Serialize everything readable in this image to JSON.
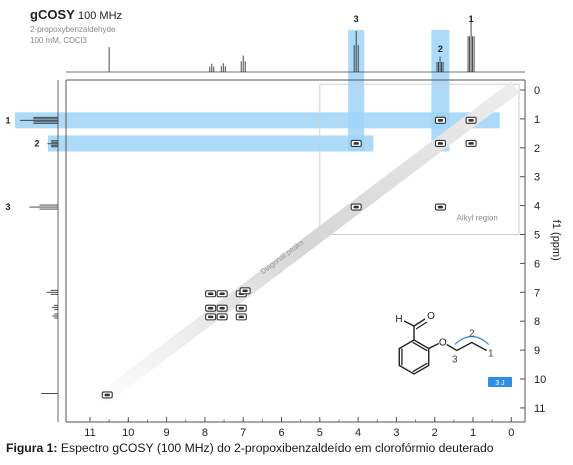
{
  "chart_data": {
    "type": "scatter",
    "title": "gCOSY",
    "title_suffix": "100 MHz",
    "subtitle_lines": [
      "2-propoxybenzaldehyde",
      "100 mM, CDCl3"
    ],
    "axis_label_f1": "f1 (ppm)",
    "x_ticks": [
      11,
      10,
      9,
      8,
      7,
      6,
      5,
      4,
      3,
      2,
      1,
      0
    ],
    "y_ticks": [
      0,
      1,
      2,
      3,
      4,
      5,
      6,
      7,
      8,
      9,
      10,
      11
    ],
    "xlim": [
      11.6,
      -0.3
    ],
    "ylim": [
      -0.3,
      11.4
    ],
    "annotations": {
      "diagonal": "Diagonal peaks",
      "region": "Alkyl region",
      "region_bounds_ppm": {
        "x": [
          5.0,
          -0.2
        ],
        "y": [
          -0.2,
          5.0
        ]
      },
      "coupling_badge": "3 J"
    },
    "highlights": [
      {
        "label": "1",
        "axis": "f1",
        "ppm": 1.05
      },
      {
        "label": "2",
        "axis": "f1",
        "ppm": 1.85
      },
      {
        "label": "3",
        "axis": "f2",
        "ppm": 4.05
      },
      {
        "label": "2",
        "axis": "f2",
        "ppm": 1.85
      }
    ],
    "top_projection_labels": [
      {
        "label": "3",
        "ppm": 4.05
      },
      {
        "label": "2",
        "ppm": 1.85
      },
      {
        "label": "1",
        "ppm": 1.05
      }
    ],
    "left_projection_labels": [
      {
        "label": "1",
        "ppm": 1.05
      },
      {
        "label": "2",
        "ppm": 1.85
      },
      {
        "label": "3",
        "ppm": 4.05
      }
    ],
    "diagonal_peaks": [
      {
        "x": 10.55,
        "y": 10.55
      },
      {
        "x": 7.85,
        "y": 7.85
      },
      {
        "x": 7.55,
        "y": 7.55
      },
      {
        "x": 7.05,
        "y": 7.05
      },
      {
        "x": 6.95,
        "y": 6.95
      },
      {
        "x": 4.05,
        "y": 4.05
      },
      {
        "x": 1.85,
        "y": 1.85
      },
      {
        "x": 1.05,
        "y": 1.05
      }
    ],
    "cross_peaks": [
      {
        "x": 1.85,
        "y": 1.05
      },
      {
        "x": 1.05,
        "y": 1.85
      },
      {
        "x": 4.05,
        "y": 1.85
      },
      {
        "x": 1.85,
        "y": 4.05
      },
      {
        "x": 7.85,
        "y": 7.05
      },
      {
        "x": 7.55,
        "y": 7.05
      },
      {
        "x": 7.05,
        "y": 7.85
      },
      {
        "x": 7.05,
        "y": 7.55
      },
      {
        "x": 7.85,
        "y": 7.55
      },
      {
        "x": 7.55,
        "y": 7.85
      }
    ],
    "spectrum_1h": [
      {
        "ppm": 10.5,
        "h": 0.45
      },
      {
        "ppm": 7.82,
        "h": 0.15
      },
      {
        "ppm": 7.52,
        "h": 0.16
      },
      {
        "ppm": 7.0,
        "h": 0.3
      },
      {
        "ppm": 4.05,
        "h": 0.75
      },
      {
        "ppm": 1.86,
        "h": 0.28
      },
      {
        "ppm": 1.05,
        "h": 1.0
      }
    ],
    "structure_labels": [
      "H",
      "O",
      "O",
      "1",
      "2",
      "3"
    ]
  },
  "caption": {
    "prefix": "Figura 1:",
    "text": " Espectro gCOSY (100 MHz) do 2-propoxibenzaldeído em clorofórmio deuterado"
  },
  "colors": {
    "highlight": "#9ed4f7",
    "badge": "#2f8fe0",
    "frame": "#555555",
    "peak": "#333333"
  }
}
